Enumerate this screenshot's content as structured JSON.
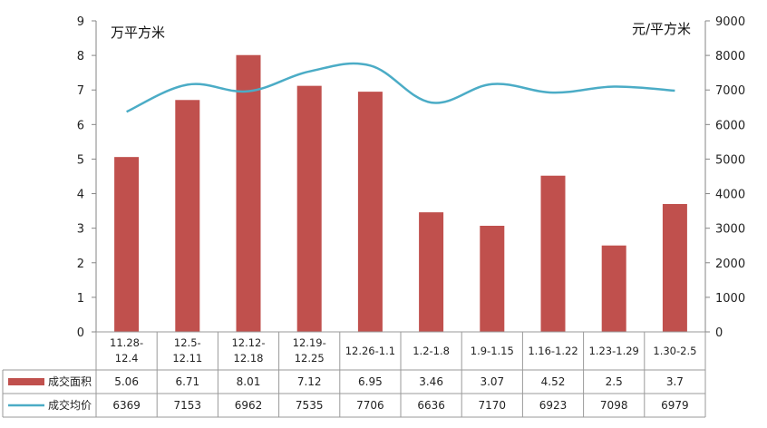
{
  "chart_data": {
    "type": "bar+line",
    "categories": [
      "11.28-12.4",
      "12.5-12.11",
      "12.12-12.18",
      "12.19-12.25",
      "12.26-1.1",
      "1.2-1.8",
      "1.9-1.15",
      "1.16-1.22",
      "1.23-1.29",
      "1.30-2.5"
    ],
    "series": [
      {
        "name": "成交面积",
        "type": "bar",
        "axis": "left",
        "color": "#C0504D",
        "values": [
          5.06,
          6.71,
          8.01,
          7.12,
          6.95,
          3.46,
          3.07,
          4.52,
          2.5,
          3.7
        ],
        "labels": [
          "5.06",
          "6.71",
          "8.01",
          "7.12",
          "6.95",
          "3.46",
          "3.07",
          "4.52",
          "2.5",
          "3.7"
        ]
      },
      {
        "name": "成交均价",
        "type": "line",
        "axis": "right",
        "color": "#4BACC6",
        "values": [
          6369,
          7153,
          6962,
          7535,
          7706,
          6636,
          7170,
          6923,
          7098,
          6979
        ],
        "labels": [
          "6369",
          "7153",
          "6962",
          "7535",
          "7706",
          "6636",
          "7170",
          "6923",
          "7098",
          "6979"
        ]
      }
    ],
    "left_axis": {
      "unit": "万平方米",
      "min": 0,
      "max": 9,
      "ticks": [
        "0",
        "1",
        "2",
        "3",
        "4",
        "5",
        "6",
        "7",
        "8",
        "9"
      ]
    },
    "right_axis": {
      "unit": "元/平方米",
      "min": 0,
      "max": 9000,
      "ticks": [
        "0",
        "1000",
        "2000",
        "3000",
        "4000",
        "5000",
        "6000",
        "7000",
        "8000",
        "9000"
      ]
    },
    "grid": false,
    "data_table": true
  }
}
